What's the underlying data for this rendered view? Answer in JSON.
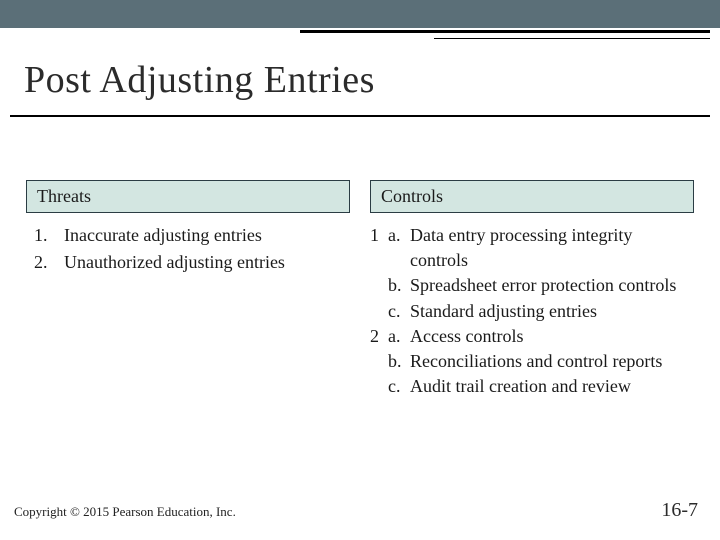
{
  "colors": {
    "top_band": "#3e5660",
    "header_fill": "#d3e6e1",
    "header_border": "#2b3d44",
    "text": "#1a1a1a",
    "background": "#ffffff",
    "rule": "#000000"
  },
  "title": "Post Adjusting Entries",
  "columns": {
    "left": {
      "header": "Threats",
      "items": [
        "Inaccurate adjusting entries",
        "Unauthorized adjusting entries"
      ]
    },
    "right": {
      "header": "Controls",
      "groups": [
        {
          "num": "1",
          "items": [
            {
              "letter": "a.",
              "text": "Data entry processing integrity controls"
            },
            {
              "letter": "b.",
              "text": "Spreadsheet error protection controls"
            },
            {
              "letter": "c.",
              "text": "Standard adjusting entries"
            }
          ]
        },
        {
          "num": "2",
          "items": [
            {
              "letter": "a.",
              "text": "Access controls"
            },
            {
              "letter": "b.",
              "text": "Reconciliations and control reports"
            },
            {
              "letter": "c.",
              "text": "Audit trail creation and review"
            }
          ]
        }
      ]
    }
  },
  "footer": {
    "copyright": "Copyright © 2015 Pearson Education, Inc.",
    "slide_number": "16-7"
  }
}
